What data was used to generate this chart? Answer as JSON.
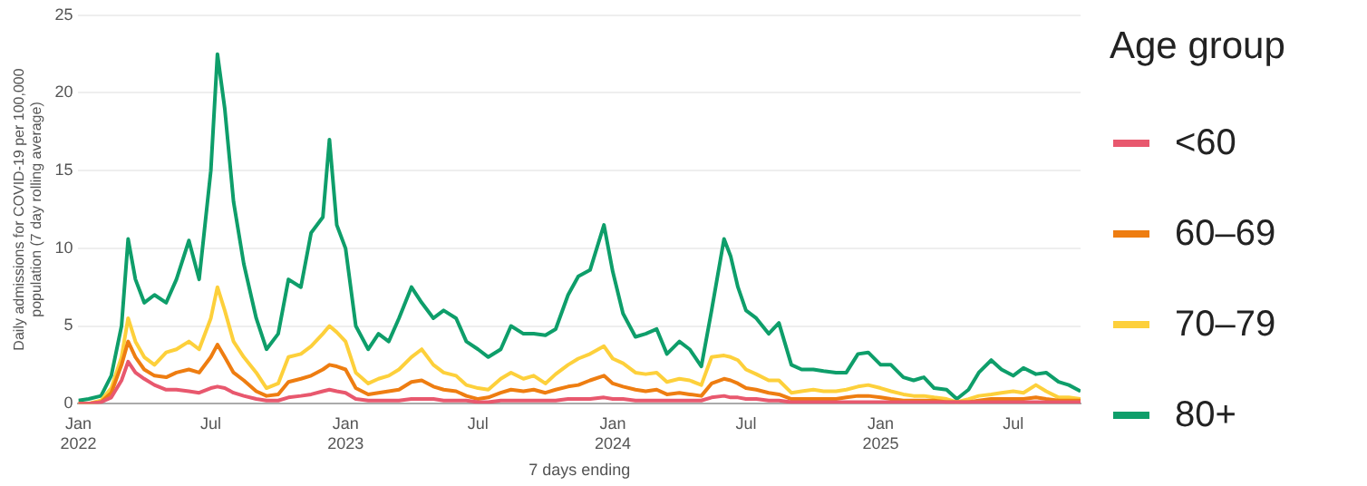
{
  "chart_data": {
    "type": "line",
    "xlabel": "7 days ending",
    "ylabel": "Daily admissions for COVID-19 per 100,000 population (7 day rolling average)",
    "legend_title": "Age group",
    "legend": "right",
    "grid": "y",
    "marker": "none",
    "line_style": "solid",
    "x": [
      "2022-01-01",
      "2022-01-15",
      "2022-02-01",
      "2022-02-15",
      "2022-03-01",
      "2022-03-10",
      "2022-03-20",
      "2022-04-01",
      "2022-04-15",
      "2022-05-01",
      "2022-05-15",
      "2022-06-01",
      "2022-06-15",
      "2022-07-01",
      "2022-07-10",
      "2022-07-20",
      "2022-08-01",
      "2022-08-15",
      "2022-09-01",
      "2022-09-15",
      "2022-10-01",
      "2022-10-15",
      "2022-11-01",
      "2022-11-15",
      "2022-12-01",
      "2022-12-10",
      "2022-12-20",
      "2023-01-01",
      "2023-01-15",
      "2023-02-01",
      "2023-02-15",
      "2023-03-01",
      "2023-03-15",
      "2023-04-01",
      "2023-04-15",
      "2023-05-01",
      "2023-05-15",
      "2023-06-01",
      "2023-06-15",
      "2023-07-01",
      "2023-07-15",
      "2023-08-01",
      "2023-08-15",
      "2023-09-01",
      "2023-09-15",
      "2023-10-01",
      "2023-10-15",
      "2023-11-01",
      "2023-11-15",
      "2023-12-01",
      "2023-12-20",
      "2024-01-01",
      "2024-01-15",
      "2024-02-01",
      "2024-02-15",
      "2024-03-01",
      "2024-03-15",
      "2024-04-01",
      "2024-04-15",
      "2024-05-01",
      "2024-05-15",
      "2024-06-01",
      "2024-06-10",
      "2024-06-20",
      "2024-07-01",
      "2024-07-15",
      "2024-08-01",
      "2024-08-15",
      "2024-09-01",
      "2024-09-15",
      "2024-10-01",
      "2024-10-15",
      "2024-11-01",
      "2024-11-15",
      "2024-12-01",
      "2024-12-15",
      "2025-01-01",
      "2025-01-15",
      "2025-02-01",
      "2025-02-15",
      "2025-03-01",
      "2025-03-15",
      "2025-04-01",
      "2025-04-15",
      "2025-05-01",
      "2025-05-15",
      "2025-06-01",
      "2025-06-15",
      "2025-07-01",
      "2025-07-15",
      "2025-08-01",
      "2025-08-15",
      "2025-09-01",
      "2025-09-15",
      "2025-10-01"
    ],
    "xlim": [
      "2022-01-01",
      "2025-10-01"
    ],
    "xticks": [
      {
        "value": "2022-01-01",
        "label": "Jan 2022"
      },
      {
        "value": "2022-07-01",
        "label": "Jul"
      },
      {
        "value": "2023-01-01",
        "label": "Jan 2023"
      },
      {
        "value": "2023-07-01",
        "label": "Jul"
      },
      {
        "value": "2024-01-01",
        "label": "Jan 2024"
      },
      {
        "value": "2024-07-01",
        "label": "Jul"
      },
      {
        "value": "2025-01-01",
        "label": "Jan 2025"
      },
      {
        "value": "2025-07-01",
        "label": "Jul"
      }
    ],
    "ylim": [
      0,
      25
    ],
    "yticks": [
      0,
      5,
      10,
      15,
      20,
      25
    ],
    "series": [
      {
        "name": "<60",
        "color": "#e8586e",
        "values": [
          0,
          0,
          0.1,
          0.4,
          1.5,
          2.7,
          2,
          1.6,
          1.2,
          0.9,
          0.9,
          0.8,
          0.7,
          1,
          1.1,
          1,
          0.7,
          0.5,
          0.3,
          0.2,
          0.2,
          0.4,
          0.5,
          0.6,
          0.8,
          0.9,
          0.8,
          0.7,
          0.3,
          0.2,
          0.2,
          0.2,
          0.2,
          0.3,
          0.3,
          0.3,
          0.2,
          0.2,
          0.2,
          0.1,
          0.1,
          0.2,
          0.2,
          0.2,
          0.2,
          0.2,
          0.2,
          0.3,
          0.3,
          0.3,
          0.4,
          0.3,
          0.3,
          0.2,
          0.2,
          0.2,
          0.2,
          0.2,
          0.2,
          0.2,
          0.4,
          0.5,
          0.4,
          0.4,
          0.3,
          0.3,
          0.2,
          0.2,
          0.1,
          0.1,
          0.1,
          0.1,
          0.1,
          0.1,
          0.1,
          0.1,
          0.1,
          0.1,
          0.1,
          0.1,
          0.1,
          0.1,
          0.1,
          0.1,
          0.1,
          0.1,
          0.1,
          0.1,
          0.1,
          0.1,
          0.1,
          0.1,
          0.1,
          0.1,
          0.1
        ]
      },
      {
        "name": "60–69",
        "color": "#ee7d11",
        "values": [
          0,
          0,
          0.1,
          0.7,
          2.5,
          4,
          3,
          2.2,
          1.8,
          1.7,
          2,
          2.2,
          2,
          3,
          3.8,
          3,
          2,
          1.5,
          0.8,
          0.5,
          0.6,
          1.4,
          1.6,
          1.8,
          2.2,
          2.5,
          2.4,
          2.2,
          1,
          0.6,
          0.7,
          0.8,
          0.9,
          1.4,
          1.5,
          1.1,
          0.9,
          0.8,
          0.5,
          0.3,
          0.4,
          0.7,
          0.9,
          0.8,
          0.9,
          0.7,
          0.9,
          1.1,
          1.2,
          1.5,
          1.8,
          1.3,
          1.1,
          0.9,
          0.8,
          0.9,
          0.6,
          0.7,
          0.6,
          0.5,
          1.3,
          1.6,
          1.5,
          1.3,
          1,
          0.9,
          0.7,
          0.6,
          0.3,
          0.3,
          0.3,
          0.3,
          0.3,
          0.4,
          0.5,
          0.5,
          0.4,
          0.3,
          0.2,
          0.2,
          0.2,
          0.2,
          0.1,
          0.1,
          0.1,
          0.2,
          0.3,
          0.3,
          0.3,
          0.3,
          0.4,
          0.3,
          0.2,
          0.2,
          0.2
        ]
      },
      {
        "name": "70–79",
        "color": "#fdd03b",
        "values": [
          0,
          0,
          0.2,
          1,
          3,
          5.5,
          4,
          3,
          2.5,
          3.3,
          3.5,
          4,
          3.5,
          5.5,
          7.5,
          6,
          4,
          3,
          2,
          1,
          1.3,
          3,
          3.2,
          3.7,
          4.5,
          5,
          4.6,
          4,
          2,
          1.3,
          1.6,
          1.8,
          2.2,
          3,
          3.5,
          2.5,
          2,
          1.8,
          1.2,
          1,
          0.9,
          1.6,
          2,
          1.6,
          1.8,
          1.3,
          1.9,
          2.5,
          2.9,
          3.2,
          3.7,
          2.9,
          2.6,
          2,
          1.9,
          2,
          1.4,
          1.6,
          1.5,
          1.2,
          3,
          3.1,
          3,
          2.8,
          2.2,
          1.9,
          1.5,
          1.5,
          0.7,
          0.8,
          0.9,
          0.8,
          0.8,
          0.9,
          1.1,
          1.2,
          1,
          0.8,
          0.6,
          0.5,
          0.5,
          0.4,
          0.3,
          0.1,
          0.3,
          0.5,
          0.6,
          0.7,
          0.8,
          0.7,
          1.2,
          0.8,
          0.4,
          0.4,
          0.3
        ]
      },
      {
        "name": "80+",
        "color": "#0e9e6a",
        "values": [
          0.2,
          0.3,
          0.5,
          1.8,
          5,
          10.6,
          8,
          6.5,
          7,
          6.5,
          8,
          10.5,
          8,
          15,
          22.5,
          19,
          13,
          9,
          5.5,
          3.5,
          4.5,
          8,
          7.5,
          11,
          12,
          17,
          11.5,
          10,
          5,
          3.5,
          4.5,
          4,
          5.5,
          7.5,
          6.5,
          5.5,
          6,
          5.5,
          4,
          3.5,
          3,
          3.5,
          5,
          4.5,
          4.5,
          4.4,
          4.8,
          7,
          8.2,
          8.6,
          11.5,
          8.5,
          5.8,
          4.3,
          4.5,
          4.8,
          3.2,
          4,
          3.5,
          2.4,
          6,
          10.6,
          9.5,
          7.5,
          6,
          5.5,
          4.5,
          5.2,
          2.5,
          2.2,
          2.2,
          2.1,
          2,
          2,
          3.2,
          3.3,
          2.5,
          2.5,
          1.7,
          1.5,
          1.7,
          1,
          0.9,
          0.3,
          0.9,
          2,
          2.8,
          2.2,
          1.8,
          2.3,
          1.9,
          2,
          1.4,
          1.2,
          0.8
        ]
      }
    ]
  }
}
